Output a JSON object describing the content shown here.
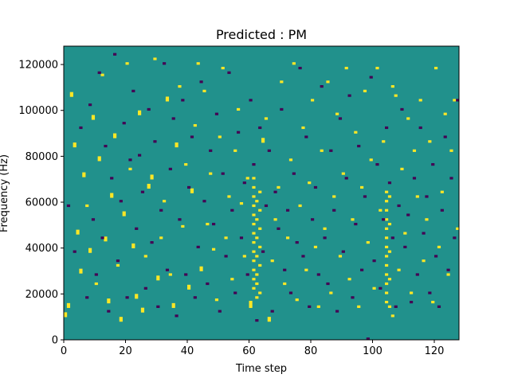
{
  "chart_data": {
    "type": "heatmap",
    "title": "Predicted : PM",
    "xlabel": "Time step",
    "ylabel": "Frequency (Hz)",
    "xlim": [
      0,
      128
    ],
    "ylim": [
      0,
      128000
    ],
    "x_ticks": [
      0,
      20,
      40,
      60,
      80,
      100,
      120
    ],
    "y_ticks": [
      0,
      20000,
      40000,
      60000,
      80000,
      100000,
      120000
    ],
    "x_tick_labels": [
      "0",
      "20",
      "40",
      "60",
      "80",
      "100",
      "120"
    ],
    "y_tick_labels": [
      "0",
      "20000",
      "40000",
      "60000",
      "80000",
      "100000",
      "120000"
    ],
    "n_freq_bins": 128,
    "bin_height_hz": 1000,
    "grid": false,
    "colors": {
      "background": "#21918c",
      "high": "#fde725",
      "low": "#440154"
    },
    "high_cells": [
      [
        0,
        10
      ],
      [
        0,
        11
      ],
      [
        1,
        14
      ],
      [
        1,
        15
      ],
      [
        2,
        106
      ],
      [
        2,
        107
      ],
      [
        3,
        84
      ],
      [
        3,
        85
      ],
      [
        4,
        46
      ],
      [
        4,
        47
      ],
      [
        5,
        29
      ],
      [
        5,
        30
      ],
      [
        6,
        71
      ],
      [
        6,
        72
      ],
      [
        7,
        58
      ],
      [
        8,
        38
      ],
      [
        8,
        39
      ],
      [
        9,
        96
      ],
      [
        9,
        97
      ],
      [
        10,
        24
      ],
      [
        11,
        78
      ],
      [
        11,
        79
      ],
      [
        12,
        115
      ],
      [
        13,
        43
      ],
      [
        13,
        44
      ],
      [
        14,
        16
      ],
      [
        14,
        17
      ],
      [
        15,
        62
      ],
      [
        15,
        63
      ],
      [
        16,
        88
      ],
      [
        16,
        89
      ],
      [
        17,
        32
      ],
      [
        18,
        8
      ],
      [
        18,
        9
      ],
      [
        19,
        54
      ],
      [
        19,
        55
      ],
      [
        20,
        120
      ],
      [
        21,
        74
      ],
      [
        22,
        40
      ],
      [
        22,
        41
      ],
      [
        23,
        18
      ],
      [
        23,
        19
      ],
      [
        24,
        98
      ],
      [
        24,
        99
      ],
      [
        25,
        12
      ],
      [
        25,
        13
      ],
      [
        26,
        36
      ],
      [
        27,
        66
      ],
      [
        27,
        67
      ],
      [
        28,
        70
      ],
      [
        28,
        71
      ],
      [
        29,
        122
      ],
      [
        30,
        26
      ],
      [
        30,
        27
      ],
      [
        31,
        44
      ],
      [
        32,
        60
      ],
      [
        33,
        104
      ],
      [
        33,
        105
      ],
      [
        34,
        28
      ],
      [
        35,
        14
      ],
      [
        35,
        15
      ],
      [
        36,
        84
      ],
      [
        36,
        85
      ],
      [
        37,
        110
      ],
      [
        38,
        49
      ],
      [
        39,
        76
      ],
      [
        40,
        22
      ],
      [
        40,
        23
      ],
      [
        41,
        64
      ],
      [
        41,
        65
      ],
      [
        42,
        93
      ],
      [
        43,
        120
      ],
      [
        44,
        30
      ],
      [
        44,
        31
      ],
      [
        45,
        108
      ],
      [
        46,
        50
      ],
      [
        47,
        72
      ],
      [
        48,
        39
      ],
      [
        49,
        17
      ],
      [
        50,
        88
      ],
      [
        51,
        118
      ],
      [
        52,
        44
      ],
      [
        53,
        62
      ],
      [
        54,
        26
      ],
      [
        55,
        82
      ],
      [
        56,
        100
      ],
      [
        57,
        59
      ],
      [
        58,
        36
      ],
      [
        59,
        70
      ],
      [
        60,
        14
      ],
      [
        60,
        15
      ],
      [
        60,
        16
      ],
      [
        61,
        22
      ],
      [
        61,
        26
      ],
      [
        61,
        30
      ],
      [
        61,
        34
      ],
      [
        61,
        38
      ],
      [
        61,
        42
      ],
      [
        61,
        46
      ],
      [
        61,
        50
      ],
      [
        61,
        54
      ],
      [
        61,
        58
      ],
      [
        61,
        62
      ],
      [
        61,
        66
      ],
      [
        61,
        70
      ],
      [
        62,
        18
      ],
      [
        62,
        24
      ],
      [
        62,
        28
      ],
      [
        62,
        36
      ],
      [
        62,
        44
      ],
      [
        62,
        52
      ],
      [
        62,
        60
      ],
      [
        63,
        20
      ],
      [
        63,
        32
      ],
      [
        63,
        40
      ],
      [
        63,
        48
      ],
      [
        63,
        56
      ],
      [
        63,
        64
      ],
      [
        64,
        86
      ],
      [
        64,
        87
      ],
      [
        65,
        96
      ],
      [
        66,
        8
      ],
      [
        66,
        9
      ],
      [
        67,
        34
      ],
      [
        68,
        52
      ],
      [
        69,
        66
      ],
      [
        70,
        112
      ],
      [
        71,
        24
      ],
      [
        72,
        44
      ],
      [
        73,
        78
      ],
      [
        74,
        120
      ],
      [
        75,
        17
      ],
      [
        76,
        58
      ],
      [
        77,
        92
      ],
      [
        78,
        30
      ],
      [
        79,
        68
      ],
      [
        80,
        104
      ],
      [
        81,
        40
      ],
      [
        82,
        14
      ],
      [
        83,
        82
      ],
      [
        84,
        48
      ],
      [
        85,
        112
      ],
      [
        86,
        20
      ],
      [
        87,
        62
      ],
      [
        88,
        98
      ],
      [
        89,
        36
      ],
      [
        90,
        72
      ],
      [
        91,
        118
      ],
      [
        92,
        26
      ],
      [
        93,
        52
      ],
      [
        94,
        90
      ],
      [
        95,
        14
      ],
      [
        96,
        66
      ],
      [
        97,
        108
      ],
      [
        98,
        42
      ],
      [
        99,
        78
      ],
      [
        100,
        22
      ],
      [
        101,
        118
      ],
      [
        102,
        56
      ],
      [
        103,
        86
      ],
      [
        104,
        16
      ],
      [
        104,
        20
      ],
      [
        104,
        24
      ],
      [
        104,
        28
      ],
      [
        104,
        32
      ],
      [
        104,
        36
      ],
      [
        104,
        40
      ],
      [
        104,
        44
      ],
      [
        104,
        48
      ],
      [
        104,
        52
      ],
      [
        104,
        56
      ],
      [
        104,
        60
      ],
      [
        104,
        64
      ],
      [
        105,
        14
      ],
      [
        105,
        26
      ],
      [
        105,
        38
      ],
      [
        105,
        50
      ],
      [
        105,
        62
      ],
      [
        106,
        10
      ],
      [
        106,
        110
      ],
      [
        107,
        106
      ],
      [
        108,
        30
      ],
      [
        109,
        74
      ],
      [
        110,
        46
      ],
      [
        111,
        96
      ],
      [
        112,
        20
      ],
      [
        113,
        82
      ],
      [
        114,
        62
      ],
      [
        115,
        104
      ],
      [
        116,
        34
      ],
      [
        117,
        52
      ],
      [
        118,
        86
      ],
      [
        119,
        16
      ],
      [
        120,
        118
      ],
      [
        121,
        40
      ],
      [
        122,
        64
      ],
      [
        123,
        98
      ],
      [
        124,
        28
      ],
      [
        125,
        82
      ],
      [
        126,
        104
      ],
      [
        127,
        48
      ]
    ],
    "low_cells": [
      [
        1,
        58
      ],
      [
        3,
        38
      ],
      [
        5,
        92
      ],
      [
        7,
        18
      ],
      [
        8,
        102
      ],
      [
        9,
        52
      ],
      [
        10,
        28
      ],
      [
        11,
        116
      ],
      [
        12,
        44
      ],
      [
        13,
        84
      ],
      [
        14,
        12
      ],
      [
        15,
        70
      ],
      [
        16,
        124
      ],
      [
        17,
        34
      ],
      [
        18,
        60
      ],
      [
        19,
        94
      ],
      [
        20,
        18
      ],
      [
        21,
        78
      ],
      [
        22,
        108
      ],
      [
        23,
        48
      ],
      [
        24,
        80
      ],
      [
        25,
        64
      ],
      [
        26,
        22
      ],
      [
        27,
        100
      ],
      [
        28,
        42
      ],
      [
        29,
        86
      ],
      [
        30,
        14
      ],
      [
        31,
        56
      ],
      [
        32,
        120
      ],
      [
        33,
        30
      ],
      [
        34,
        74
      ],
      [
        35,
        96
      ],
      [
        36,
        10
      ],
      [
        37,
        52
      ],
      [
        38,
        104
      ],
      [
        39,
        28
      ],
      [
        40,
        66
      ],
      [
        41,
        88
      ],
      [
        42,
        18
      ],
      [
        43,
        40
      ],
      [
        44,
        112
      ],
      [
        45,
        60
      ],
      [
        46,
        24
      ],
      [
        47,
        82
      ],
      [
        48,
        50
      ],
      [
        49,
        98
      ],
      [
        50,
        12
      ],
      [
        51,
        72
      ],
      [
        52,
        36
      ],
      [
        53,
        116
      ],
      [
        54,
        56
      ],
      [
        55,
        20
      ],
      [
        56,
        90
      ],
      [
        57,
        44
      ],
      [
        58,
        68
      ],
      [
        59,
        28
      ],
      [
        60,
        104
      ],
      [
        61,
        76
      ],
      [
        62,
        8
      ],
      [
        63,
        92
      ],
      [
        64,
        38
      ],
      [
        65,
        58
      ],
      [
        66,
        82
      ],
      [
        67,
        12
      ],
      [
        68,
        64
      ],
      [
        69,
        48
      ],
      [
        70,
        100
      ],
      [
        71,
        30
      ],
      [
        72,
        56
      ],
      [
        73,
        20
      ],
      [
        74,
        72
      ],
      [
        75,
        42
      ],
      [
        76,
        118
      ],
      [
        77,
        36
      ],
      [
        78,
        88
      ],
      [
        79,
        14
      ],
      [
        80,
        52
      ],
      [
        81,
        66
      ],
      [
        82,
        28
      ],
      [
        83,
        110
      ],
      [
        84,
        44
      ],
      [
        85,
        24
      ],
      [
        86,
        82
      ],
      [
        87,
        56
      ],
      [
        88,
        12
      ],
      [
        89,
        96
      ],
      [
        90,
        38
      ],
      [
        91,
        70
      ],
      [
        92,
        106
      ],
      [
        93,
        18
      ],
      [
        94,
        50
      ],
      [
        95,
        84
      ],
      [
        96,
        30
      ],
      [
        97,
        62
      ],
      [
        98,
        0
      ],
      [
        99,
        114
      ],
      [
        100,
        34
      ],
      [
        101,
        76
      ],
      [
        102,
        22
      ],
      [
        103,
        52
      ],
      [
        104,
        92
      ],
      [
        105,
        68
      ],
      [
        106,
        44
      ],
      [
        107,
        14
      ],
      [
        108,
        58
      ],
      [
        109,
        100
      ],
      [
        110,
        40
      ],
      [
        111,
        54
      ],
      [
        112,
        16
      ],
      [
        113,
        70
      ],
      [
        114,
        28
      ],
      [
        115,
        92
      ],
      [
        116,
        46
      ],
      [
        117,
        62
      ],
      [
        118,
        20
      ],
      [
        119,
        76
      ],
      [
        120,
        36
      ],
      [
        121,
        14
      ],
      [
        122,
        56
      ],
      [
        123,
        88
      ],
      [
        124,
        30
      ],
      [
        125,
        70
      ],
      [
        126,
        44
      ],
      [
        127,
        104
      ]
    ]
  }
}
